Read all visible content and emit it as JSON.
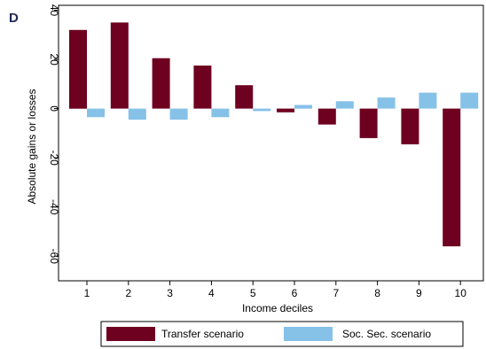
{
  "panel_label": "D",
  "chart_data": {
    "type": "bar",
    "categories": [
      "1",
      "2",
      "3",
      "4",
      "5",
      "6",
      "7",
      "8",
      "9",
      "10"
    ],
    "series": [
      {
        "name": "Transfer scenario",
        "color": "#6e0020",
        "values": [
          32,
          35,
          20.5,
          17.5,
          9.5,
          -1.5,
          -6.5,
          -12,
          -14.5,
          -56
        ]
      },
      {
        "name": "Soc. Sec. scenario",
        "color": "#86c1e8",
        "values": [
          -3.5,
          -4.5,
          -4.5,
          -3.5,
          -1,
          1.5,
          3,
          4.5,
          6.5,
          6.5
        ]
      }
    ],
    "xlabel": "Income deciles",
    "ylabel": "Absolute gains or losses",
    "ylim": [
      -70,
      42
    ],
    "yticks": [
      -60,
      -40,
      -20,
      0,
      20,
      40
    ],
    "ytick_labels": [
      "-60",
      "-40",
      "-20",
      "0",
      "20",
      "40"
    ],
    "grid": false,
    "legend_position": "bottom"
  }
}
